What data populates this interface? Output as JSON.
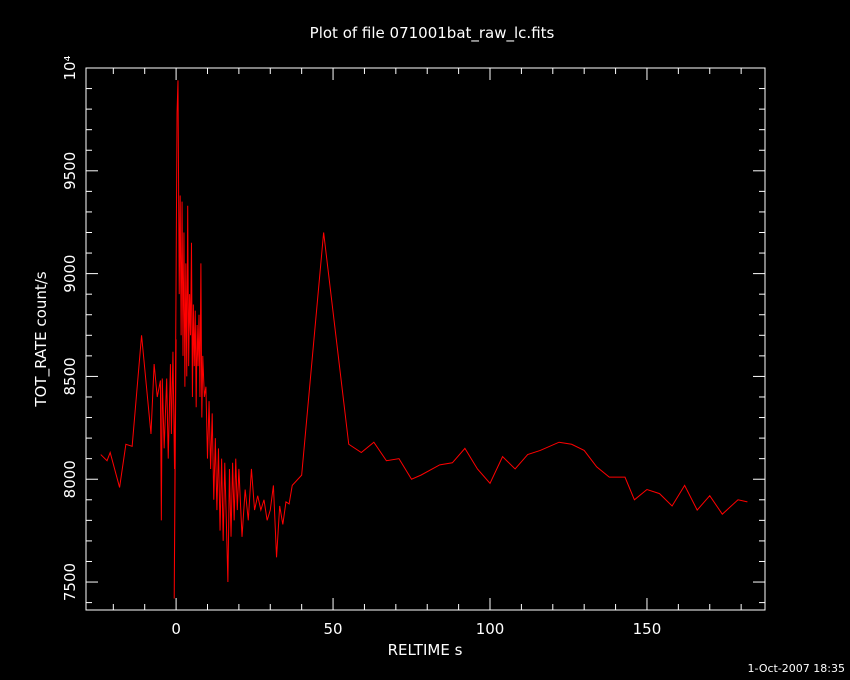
{
  "chart_data": {
    "type": "line",
    "title": "Plot of file 071001bat_raw_lc.fits",
    "x_label": "RELTIME  s",
    "y_label": "TOT_RATE  count/s",
    "footer": "1-Oct-2007 18:35",
    "color": "#ff0000",
    "x": [
      -24,
      -22,
      -21,
      -18,
      -16,
      -14,
      -11,
      -8,
      -7,
      -6,
      -5,
      -4.7,
      -4.4,
      -3.8,
      -3,
      -2.5,
      -1.8,
      -1.5,
      -1,
      -0.5,
      0,
      -0.6,
      0.3,
      0.6,
      1,
      1.3,
      1.6,
      1.9,
      2.2,
      2.5,
      2.8,
      3.1,
      3.4,
      3.7,
      4,
      4.3,
      4.6,
      4.9,
      5.2,
      5.5,
      5.8,
      6.1,
      6.4,
      6.7,
      7,
      7.3,
      7.6,
      7.9,
      8.2,
      8.5,
      9,
      9.5,
      10,
      10.5,
      11,
      11.5,
      12,
      12.5,
      13,
      13.5,
      14,
      14.5,
      15,
      15.5,
      16,
      16.5,
      17,
      17.5,
      18,
      18.5,
      19,
      19.5,
      20,
      21,
      22,
      23,
      24,
      25,
      26,
      27,
      28,
      29,
      30,
      31,
      32,
      33,
      34,
      35,
      36,
      37,
      40,
      47,
      55,
      59,
      63,
      67,
      71,
      75,
      78,
      84,
      88,
      92,
      96,
      100,
      104,
      108,
      112,
      116,
      122,
      126,
      130,
      134,
      138,
      143,
      146,
      150,
      154,
      158,
      162,
      166,
      170,
      174,
      179,
      182
    ],
    "values": [
      8120,
      8090,
      8130,
      7960,
      8170,
      8160,
      8700,
      8220,
      8560,
      8400,
      8480,
      7800,
      8490,
      8150,
      8490,
      8100,
      8560,
      8220,
      8620,
      8050,
      8680,
      7420,
      9780,
      9940,
      8900,
      9380,
      8700,
      9350,
      8600,
      9200,
      8450,
      9050,
      8500,
      9330,
      8550,
      8900,
      8700,
      9150,
      8400,
      8850,
      8550,
      8820,
      8350,
      8750,
      8550,
      8800,
      8400,
      9050,
      8300,
      8600,
      8400,
      8450,
      8100,
      8380,
      8050,
      8320,
      7900,
      8200,
      7850,
      8150,
      7750,
      8100,
      7700,
      8080,
      7800,
      7500,
      8050,
      7720,
      8080,
      7800,
      8100,
      7850,
      8050,
      7720,
      7950,
      7800,
      8050,
      7850,
      7920,
      7850,
      7900,
      7800,
      7850,
      7970,
      7620,
      7870,
      7780,
      7890,
      7880,
      7970,
      8020,
      9200,
      8170,
      8130,
      8180,
      8090,
      8100,
      8000,
      8020,
      8070,
      8080,
      8150,
      8050,
      7980,
      8110,
      8050,
      8120,
      8140,
      8180,
      8170,
      8140,
      8060,
      8010,
      8010,
      7900,
      7950,
      7930,
      7870,
      7970,
      7850,
      7920,
      7830,
      7900,
      7890
    ],
    "xlim": [
      -28.7,
      187.6
    ],
    "ylim": [
      7364,
      10000
    ],
    "xticks": [
      0,
      50,
      100,
      150
    ],
    "yticks": [
      7500,
      8000,
      8500,
      9000,
      9500,
      {
        "value": 10000,
        "label": "10⁴"
      }
    ],
    "xminorticks": [
      -20,
      -10,
      10,
      20,
      30,
      40,
      60,
      70,
      80,
      90,
      110,
      120,
      130,
      140,
      160,
      170,
      180
    ],
    "yminorticks": [
      7400,
      7600,
      7700,
      7800,
      7900,
      8100,
      8200,
      8300,
      8400,
      8600,
      8700,
      8800,
      8900,
      9100,
      9200,
      9300,
      9400,
      9600,
      9700,
      9800,
      9900
    ]
  }
}
